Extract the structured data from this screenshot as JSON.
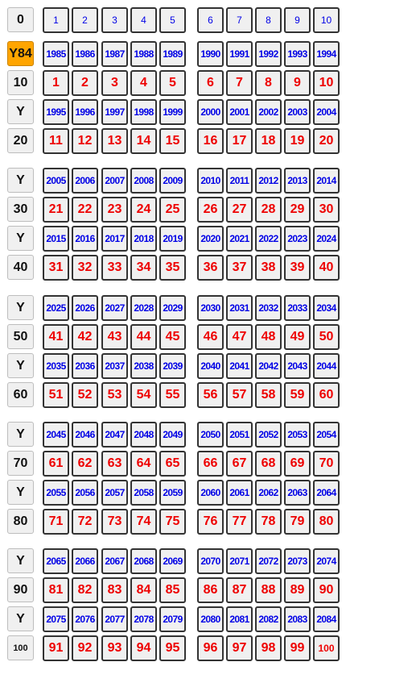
{
  "colors": {
    "selected_bg": "#ffa500",
    "year_text": "#0000e6",
    "number_text": "#ee0000"
  },
  "header": {
    "label": "0",
    "cells": [
      "1",
      "2",
      "3",
      "4",
      "5",
      "6",
      "7",
      "8",
      "9",
      "10"
    ]
  },
  "groups": [
    {
      "year_rows": [
        {
          "label": "Y84",
          "selected": true,
          "cells": [
            "1985",
            "1986",
            "1987",
            "1988",
            "1989",
            "1990",
            "1991",
            "1992",
            "1993",
            "1994"
          ]
        },
        {
          "label": "Y",
          "cells": [
            "1995",
            "1996",
            "1997",
            "1998",
            "1999",
            "2000",
            "2001",
            "2002",
            "2003",
            "2004"
          ]
        }
      ],
      "num_rows": [
        {
          "label": "10",
          "cells": [
            "1",
            "2",
            "3",
            "4",
            "5",
            "6",
            "7",
            "8",
            "9",
            "10"
          ]
        },
        {
          "label": "20",
          "cells": [
            "11",
            "12",
            "13",
            "14",
            "15",
            "16",
            "17",
            "18",
            "19",
            "20"
          ]
        }
      ]
    },
    {
      "year_rows": [
        {
          "label": "Y",
          "cells": [
            "2005",
            "2006",
            "2007",
            "2008",
            "2009",
            "2010",
            "2011",
            "2012",
            "2013",
            "2014"
          ]
        },
        {
          "label": "Y",
          "cells": [
            "2015",
            "2016",
            "2017",
            "2018",
            "2019",
            "2020",
            "2021",
            "2022",
            "2023",
            "2024"
          ]
        }
      ],
      "num_rows": [
        {
          "label": "30",
          "cells": [
            "21",
            "22",
            "23",
            "24",
            "25",
            "26",
            "27",
            "28",
            "29",
            "30"
          ]
        },
        {
          "label": "40",
          "cells": [
            "31",
            "32",
            "33",
            "34",
            "35",
            "36",
            "37",
            "38",
            "39",
            "40"
          ]
        }
      ]
    },
    {
      "year_rows": [
        {
          "label": "Y",
          "cells": [
            "2025",
            "2026",
            "2027",
            "2028",
            "2029",
            "2030",
            "2031",
            "2032",
            "2033",
            "2034"
          ]
        },
        {
          "label": "Y",
          "cells": [
            "2035",
            "2036",
            "2037",
            "2038",
            "2039",
            "2040",
            "2041",
            "2042",
            "2043",
            "2044"
          ]
        }
      ],
      "num_rows": [
        {
          "label": "50",
          "cells": [
            "41",
            "42",
            "43",
            "44",
            "45",
            "46",
            "47",
            "48",
            "49",
            "50"
          ]
        },
        {
          "label": "60",
          "cells": [
            "51",
            "52",
            "53",
            "54",
            "55",
            "56",
            "57",
            "58",
            "59",
            "60"
          ]
        }
      ]
    },
    {
      "year_rows": [
        {
          "label": "Y",
          "cells": [
            "2045",
            "2046",
            "2047",
            "2048",
            "2049",
            "2050",
            "2051",
            "2052",
            "2053",
            "2054"
          ]
        },
        {
          "label": "Y",
          "cells": [
            "2055",
            "2056",
            "2057",
            "2058",
            "2059",
            "2060",
            "2061",
            "2062",
            "2063",
            "2064"
          ]
        }
      ],
      "num_rows": [
        {
          "label": "70",
          "cells": [
            "61",
            "62",
            "63",
            "64",
            "65",
            "66",
            "67",
            "68",
            "69",
            "70"
          ]
        },
        {
          "label": "80",
          "cells": [
            "71",
            "72",
            "73",
            "74",
            "75",
            "76",
            "77",
            "78",
            "79",
            "80"
          ]
        }
      ]
    },
    {
      "year_rows": [
        {
          "label": "Y",
          "cells": [
            "2065",
            "2066",
            "2067",
            "2068",
            "2069",
            "2070",
            "2071",
            "2072",
            "2073",
            "2074"
          ]
        },
        {
          "label": "Y",
          "cells": [
            "2075",
            "2076",
            "2077",
            "2078",
            "2079",
            "2080",
            "2081",
            "2082",
            "2083",
            "2084"
          ]
        }
      ],
      "num_rows": [
        {
          "label": "90",
          "cells": [
            "81",
            "82",
            "83",
            "84",
            "85",
            "86",
            "87",
            "88",
            "89",
            "90"
          ]
        },
        {
          "label": "100",
          "cells": [
            "91",
            "92",
            "93",
            "94",
            "95",
            "96",
            "97",
            "98",
            "99",
            "100"
          ]
        }
      ]
    }
  ]
}
